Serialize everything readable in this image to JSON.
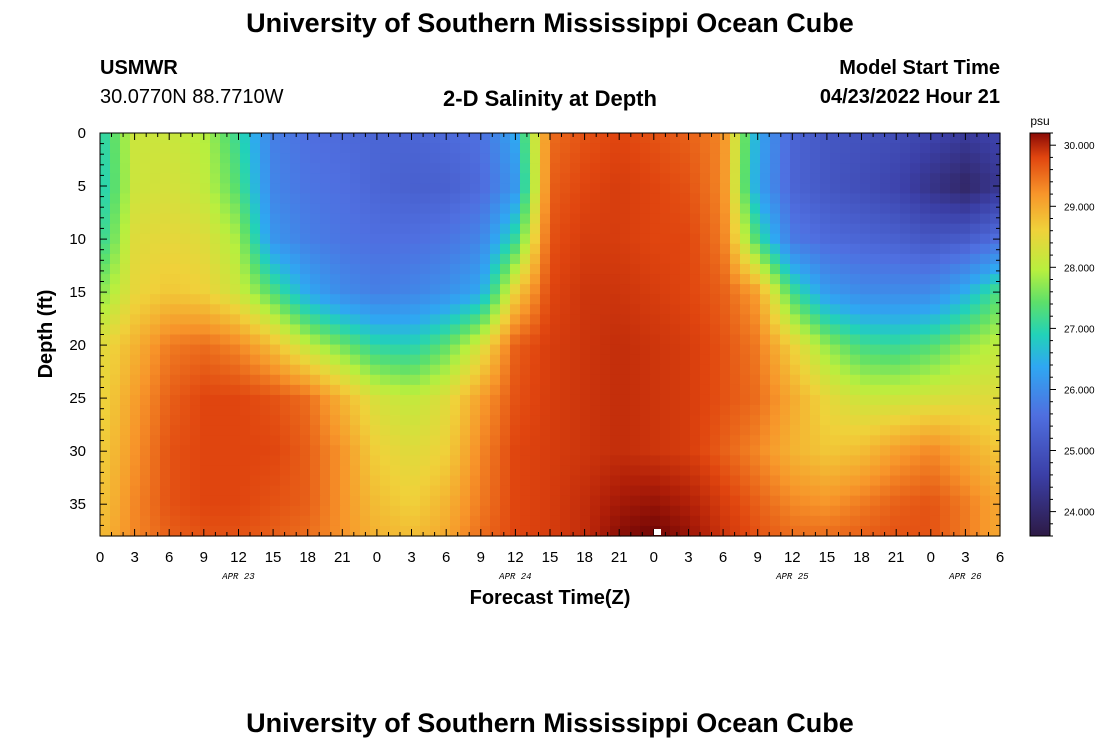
{
  "header": {
    "title": "University of Southern Mississippi Ocean Cube",
    "station": "USMWR",
    "coordinates": "30.0770N  88.7710W",
    "chart_title": "2-D Salinity at Depth",
    "model_label": "Model Start Time",
    "model_time": "04/23/2022 Hour 21"
  },
  "footer": {
    "title": "University of Southern Mississippi Ocean Cube"
  },
  "chart_data": {
    "type": "heatmap",
    "title": "2-D Salinity at Depth",
    "xlabel": "Forecast Time(Z)",
    "ylabel": "Depth (ft)",
    "x_tick_labels": [
      "0",
      "3",
      "6",
      "9",
      "12",
      "15",
      "18",
      "21",
      "0",
      "3",
      "6",
      "9",
      "12",
      "15",
      "18",
      "21",
      "0",
      "3",
      "6",
      "9",
      "12",
      "15",
      "18",
      "21",
      "0",
      "3",
      "6"
    ],
    "x_date_labels": [
      {
        "label": "APR 23",
        "hour": 12
      },
      {
        "label": "APR 24",
        "hour": 36
      },
      {
        "label": "APR 25",
        "hour": 60
      },
      {
        "label": "APR 26",
        "hour": 75
      }
    ],
    "xlim": [
      0,
      78
    ],
    "y_tick_labels": [
      "0",
      "5",
      "10",
      "15",
      "20",
      "25",
      "30",
      "35"
    ],
    "y_ticks": [
      0,
      5,
      10,
      15,
      20,
      25,
      30,
      35
    ],
    "ylim": [
      0,
      38
    ],
    "colorbar": {
      "unit": "psu",
      "tick_labels": [
        "30.000",
        "29.000",
        "28.000",
        "27.000",
        "26.000",
        "25.000",
        "24.000"
      ],
      "ticks": [
        30,
        29,
        28,
        27,
        26,
        25,
        24
      ],
      "range": [
        23.6,
        30.2
      ]
    },
    "x": [
      0,
      3,
      6,
      9,
      12,
      15,
      18,
      21,
      24,
      27,
      30,
      33,
      36,
      39,
      42,
      45,
      48,
      51,
      54,
      57,
      60,
      63,
      66,
      69,
      72,
      75,
      78
    ],
    "depths": [
      0,
      5,
      10,
      15,
      20,
      25,
      30,
      35,
      38
    ],
    "values": [
      [
        27.0,
        28.2,
        28.2,
        28.0,
        27.2,
        25.8,
        25.5,
        25.4,
        25.3,
        25.3,
        25.4,
        25.5,
        26.5,
        29.5,
        29.7,
        29.8,
        29.7,
        29.6,
        29.3,
        26.5,
        25.3,
        25.0,
        24.9,
        24.8,
        24.6,
        24.4,
        24.6
      ],
      [
        26.9,
        28.2,
        28.3,
        28.1,
        27.4,
        25.9,
        25.6,
        25.5,
        25.3,
        25.2,
        25.2,
        25.4,
        26.2,
        29.6,
        29.8,
        29.9,
        29.8,
        29.7,
        29.3,
        26.4,
        25.3,
        25.0,
        24.8,
        24.6,
        24.2,
        23.9,
        24.3
      ],
      [
        27.1,
        28.4,
        28.5,
        28.4,
        27.9,
        26.2,
        25.8,
        25.6,
        25.5,
        25.5,
        25.6,
        25.9,
        27.2,
        29.7,
        29.9,
        29.9,
        29.8,
        29.8,
        29.4,
        27.3,
        25.7,
        25.4,
        25.3,
        25.2,
        25.0,
        25.1,
        25.5
      ],
      [
        27.7,
        28.5,
        28.7,
        28.6,
        28.2,
        27.4,
        26.5,
        26.0,
        25.8,
        25.9,
        26.1,
        26.5,
        28.6,
        29.8,
        30.0,
        30.0,
        29.9,
        29.8,
        29.6,
        29.1,
        27.3,
        26.3,
        26.0,
        26.0,
        26.0,
        26.6,
        27.4
      ],
      [
        28.4,
        28.9,
        29.4,
        29.5,
        29.3,
        28.8,
        28.1,
        27.6,
        27.1,
        27.0,
        27.5,
        28.3,
        29.6,
        29.9,
        30.0,
        30.1,
        30.0,
        29.9,
        29.7,
        29.4,
        28.6,
        27.8,
        27.3,
        27.2,
        27.4,
        27.8,
        28.1
      ],
      [
        28.5,
        29.1,
        29.6,
        29.8,
        29.8,
        29.7,
        29.5,
        28.9,
        28.3,
        28.1,
        28.4,
        29.1,
        29.7,
        29.9,
        30.0,
        30.1,
        30.0,
        29.9,
        29.7,
        29.5,
        29.0,
        28.5,
        28.2,
        28.2,
        28.3,
        28.4,
        28.4
      ],
      [
        28.6,
        29.2,
        29.7,
        29.8,
        29.8,
        29.8,
        29.6,
        29.2,
        28.6,
        28.4,
        28.6,
        29.3,
        29.8,
        29.9,
        30.0,
        30.1,
        30.0,
        29.9,
        29.6,
        29.3,
        28.9,
        28.7,
        28.8,
        29.1,
        29.3,
        29.0,
        28.7
      ],
      [
        28.7,
        29.3,
        29.7,
        29.8,
        29.8,
        29.7,
        29.6,
        29.2,
        28.8,
        28.6,
        28.9,
        29.4,
        29.8,
        29.9,
        30.1,
        30.4,
        30.5,
        30.3,
        29.9,
        29.6,
        29.3,
        29.2,
        29.4,
        29.6,
        29.7,
        29.4,
        29.0
      ],
      [
        28.8,
        29.3,
        29.6,
        29.7,
        29.7,
        29.6,
        29.5,
        29.2,
        28.9,
        28.8,
        29.0,
        29.5,
        29.8,
        29.9,
        30.1,
        30.6,
        30.8,
        30.5,
        30.0,
        29.7,
        29.5,
        29.5,
        29.6,
        29.7,
        29.7,
        29.4,
        29.0
      ]
    ]
  }
}
